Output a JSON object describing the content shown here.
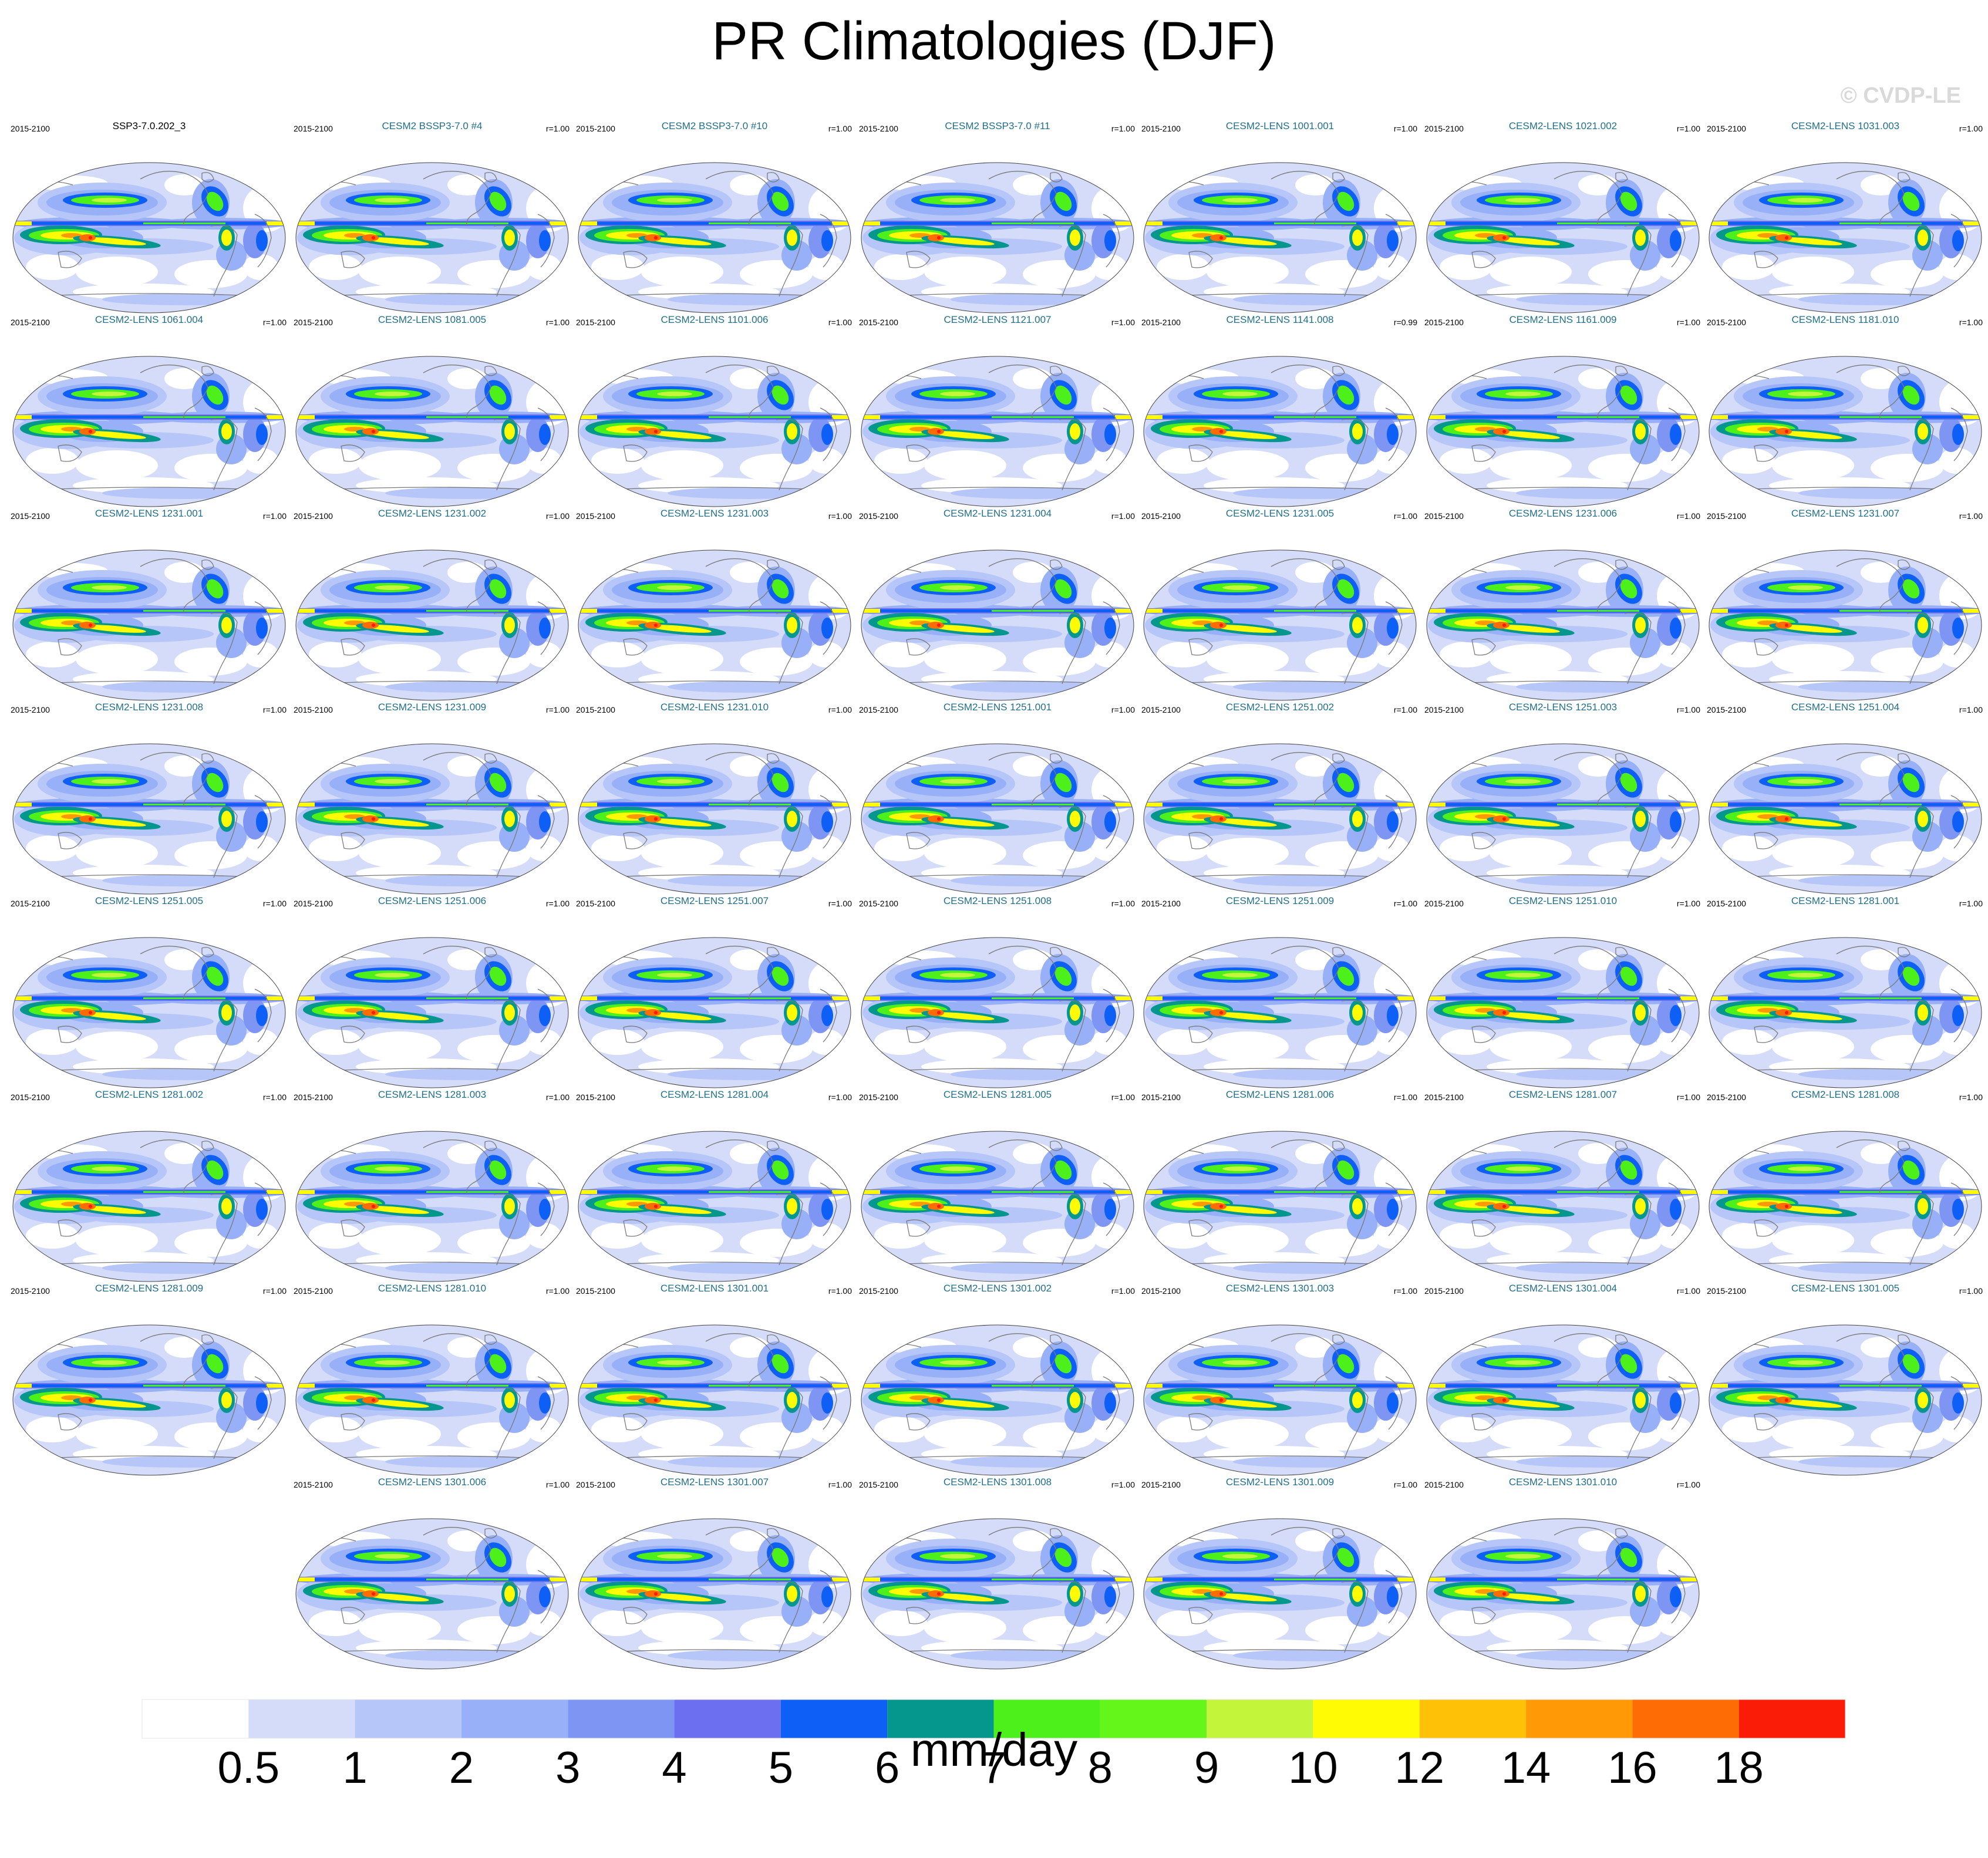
{
  "title": "PR Climatologies (DJF)",
  "watermark": "© CVDP-LE",
  "colors": {
    "panel_title": "#1f6f8b",
    "coast": "#7a7a7a"
  },
  "chart_data": {
    "type": "heatmap",
    "title": "PR Climatologies (DJF)",
    "projection": "Robinson (global)",
    "variable": "PR",
    "season": "DJF",
    "units": "mm/day",
    "colorbar": {
      "levels": [
        0.5,
        1,
        2,
        3,
        4,
        5,
        6,
        7,
        8,
        9,
        10,
        12,
        14,
        16,
        18
      ],
      "tick_labels": [
        "0.5",
        "1",
        "2",
        "3",
        "4",
        "5",
        "6",
        "7",
        "8",
        "9",
        "10",
        "12",
        "14",
        "16",
        "18"
      ],
      "colors": [
        "#ffffff",
        "#d5dcf9",
        "#b7c6f8",
        "#98b0f7",
        "#7f95f4",
        "#6b6ff0",
        "#0d5ff5",
        "#05978e",
        "#4ef01b",
        "#64f51a",
        "#c3f53a",
        "#fffb05",
        "#ffc108",
        "#ff9a06",
        "#fd6c05",
        "#fa1c07"
      ],
      "label": "mm/day"
    },
    "panels": [
      {
        "name": "SSP3-7.0.202_3",
        "period": "2015-2100",
        "r": "",
        "reference": true
      },
      {
        "name": "CESM2 BSSP3-7.0 #4",
        "period": "2015-2100",
        "r": "r=1.00"
      },
      {
        "name": "CESM2 BSSP3-7.0 #10",
        "period": "2015-2100",
        "r": "r=1.00"
      },
      {
        "name": "CESM2 BSSP3-7.0 #11",
        "period": "2015-2100",
        "r": "r=1.00"
      },
      {
        "name": "CESM2-LENS 1001.001",
        "period": "2015-2100",
        "r": "r=1.00"
      },
      {
        "name": "CESM2-LENS 1021.002",
        "period": "2015-2100",
        "r": "r=1.00"
      },
      {
        "name": "CESM2-LENS 1031.003",
        "period": "2015-2100",
        "r": "r=1.00"
      },
      {
        "name": "CESM2-LENS 1061.004",
        "period": "2015-2100",
        "r": "r=1.00"
      },
      {
        "name": "CESM2-LENS 1081.005",
        "period": "2015-2100",
        "r": "r=1.00"
      },
      {
        "name": "CESM2-LENS 1101.006",
        "period": "2015-2100",
        "r": "r=1.00"
      },
      {
        "name": "CESM2-LENS 1121.007",
        "period": "2015-2100",
        "r": "r=1.00"
      },
      {
        "name": "CESM2-LENS 1141.008",
        "period": "2015-2100",
        "r": "r=0.99"
      },
      {
        "name": "CESM2-LENS 1161.009",
        "period": "2015-2100",
        "r": "r=1.00"
      },
      {
        "name": "CESM2-LENS 1181.010",
        "period": "2015-2100",
        "r": "r=1.00"
      },
      {
        "name": "CESM2-LENS 1231.001",
        "period": "2015-2100",
        "r": "r=1.00"
      },
      {
        "name": "CESM2-LENS 1231.002",
        "period": "2015-2100",
        "r": "r=1.00"
      },
      {
        "name": "CESM2-LENS 1231.003",
        "period": "2015-2100",
        "r": "r=1.00"
      },
      {
        "name": "CESM2-LENS 1231.004",
        "period": "2015-2100",
        "r": "r=1.00"
      },
      {
        "name": "CESM2-LENS 1231.005",
        "period": "2015-2100",
        "r": "r=1.00"
      },
      {
        "name": "CESM2-LENS 1231.006",
        "period": "2015-2100",
        "r": "r=1.00"
      },
      {
        "name": "CESM2-LENS 1231.007",
        "period": "2015-2100",
        "r": "r=1.00"
      },
      {
        "name": "CESM2-LENS 1231.008",
        "period": "2015-2100",
        "r": "r=1.00"
      },
      {
        "name": "CESM2-LENS 1231.009",
        "period": "2015-2100",
        "r": "r=1.00"
      },
      {
        "name": "CESM2-LENS 1231.010",
        "period": "2015-2100",
        "r": "r=1.00"
      },
      {
        "name": "CESM2-LENS 1251.001",
        "period": "2015-2100",
        "r": "r=1.00"
      },
      {
        "name": "CESM2-LENS 1251.002",
        "period": "2015-2100",
        "r": "r=1.00"
      },
      {
        "name": "CESM2-LENS 1251.003",
        "period": "2015-2100",
        "r": "r=1.00"
      },
      {
        "name": "CESM2-LENS 1251.004",
        "period": "2015-2100",
        "r": "r=1.00"
      },
      {
        "name": "CESM2-LENS 1251.005",
        "period": "2015-2100",
        "r": "r=1.00"
      },
      {
        "name": "CESM2-LENS 1251.006",
        "period": "2015-2100",
        "r": "r=1.00"
      },
      {
        "name": "CESM2-LENS 1251.007",
        "period": "2015-2100",
        "r": "r=1.00"
      },
      {
        "name": "CESM2-LENS 1251.008",
        "period": "2015-2100",
        "r": "r=1.00"
      },
      {
        "name": "CESM2-LENS 1251.009",
        "period": "2015-2100",
        "r": "r=1.00"
      },
      {
        "name": "CESM2-LENS 1251.010",
        "period": "2015-2100",
        "r": "r=1.00"
      },
      {
        "name": "CESM2-LENS 1281.001",
        "period": "2015-2100",
        "r": "r=1.00"
      },
      {
        "name": "CESM2-LENS 1281.002",
        "period": "2015-2100",
        "r": "r=1.00"
      },
      {
        "name": "CESM2-LENS 1281.003",
        "period": "2015-2100",
        "r": "r=1.00"
      },
      {
        "name": "CESM2-LENS 1281.004",
        "period": "2015-2100",
        "r": "r=1.00"
      },
      {
        "name": "CESM2-LENS 1281.005",
        "period": "2015-2100",
        "r": "r=1.00"
      },
      {
        "name": "CESM2-LENS 1281.006",
        "period": "2015-2100",
        "r": "r=1.00"
      },
      {
        "name": "CESM2-LENS 1281.007",
        "period": "2015-2100",
        "r": "r=1.00"
      },
      {
        "name": "CESM2-LENS 1281.008",
        "period": "2015-2100",
        "r": "r=1.00"
      },
      {
        "name": "CESM2-LENS 1281.009",
        "period": "2015-2100",
        "r": "r=1.00"
      },
      {
        "name": "CESM2-LENS 1281.010",
        "period": "2015-2100",
        "r": "r=1.00"
      },
      {
        "name": "CESM2-LENS 1301.001",
        "period": "2015-2100",
        "r": "r=1.00"
      },
      {
        "name": "CESM2-LENS 1301.002",
        "period": "2015-2100",
        "r": "r=1.00"
      },
      {
        "name": "CESM2-LENS 1301.003",
        "period": "2015-2100",
        "r": "r=1.00"
      },
      {
        "name": "CESM2-LENS 1301.004",
        "period": "2015-2100",
        "r": "r=1.00"
      },
      {
        "name": "CESM2-LENS 1301.005",
        "period": "2015-2100",
        "r": "r=1.00"
      },
      {
        "name": "CESM2-LENS 1301.006",
        "period": "2015-2100",
        "r": "r=1.00"
      },
      {
        "name": "CESM2-LENS 1301.007",
        "period": "2015-2100",
        "r": "r=1.00"
      },
      {
        "name": "CESM2-LENS 1301.008",
        "period": "2015-2100",
        "r": "r=1.00"
      },
      {
        "name": "CESM2-LENS 1301.009",
        "period": "2015-2100",
        "r": "r=1.00"
      },
      {
        "name": "CESM2-LENS 1301.010",
        "period": "2015-2100",
        "r": "r=1.00"
      }
    ]
  }
}
